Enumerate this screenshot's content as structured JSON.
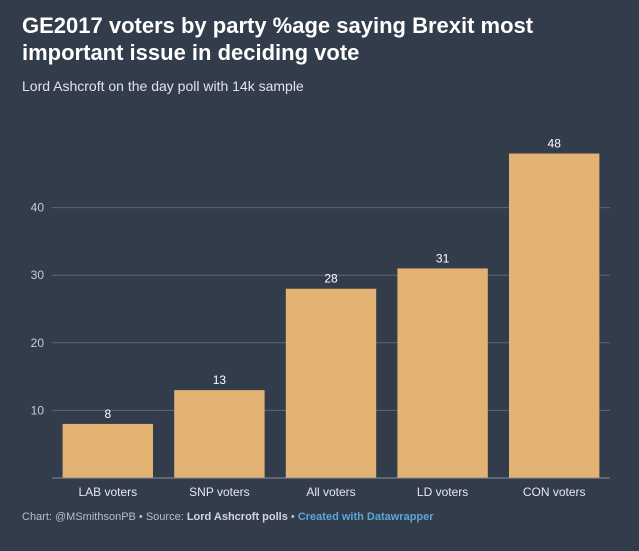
{
  "chart_data": {
    "type": "bar",
    "title": "GE2017 voters by party %age saying Brexit most important issue in deciding vote",
    "subtitle": "Lord Ashcroft on the day poll with 14k sample",
    "categories": [
      "LAB voters",
      "SNP voters",
      "All voters",
      "LD voters",
      "CON voters"
    ],
    "values": [
      8,
      13,
      28,
      31,
      48
    ],
    "ylim": [
      0,
      50
    ],
    "yticks": [
      10,
      20,
      30,
      40
    ],
    "grid": true,
    "bar_color": "#e2b372",
    "xlabel": "",
    "ylabel": ""
  },
  "footer": {
    "credit": "Chart: @MSmithsonPB",
    "separator": " • ",
    "source_label": "Source: ",
    "source": "Lord Ashcroft polls",
    "made_with": "Created with Datawrapper"
  },
  "colors": {
    "background": "#333c4b",
    "gridline": "#5d6675",
    "axis_text": "#c9ccd2"
  }
}
